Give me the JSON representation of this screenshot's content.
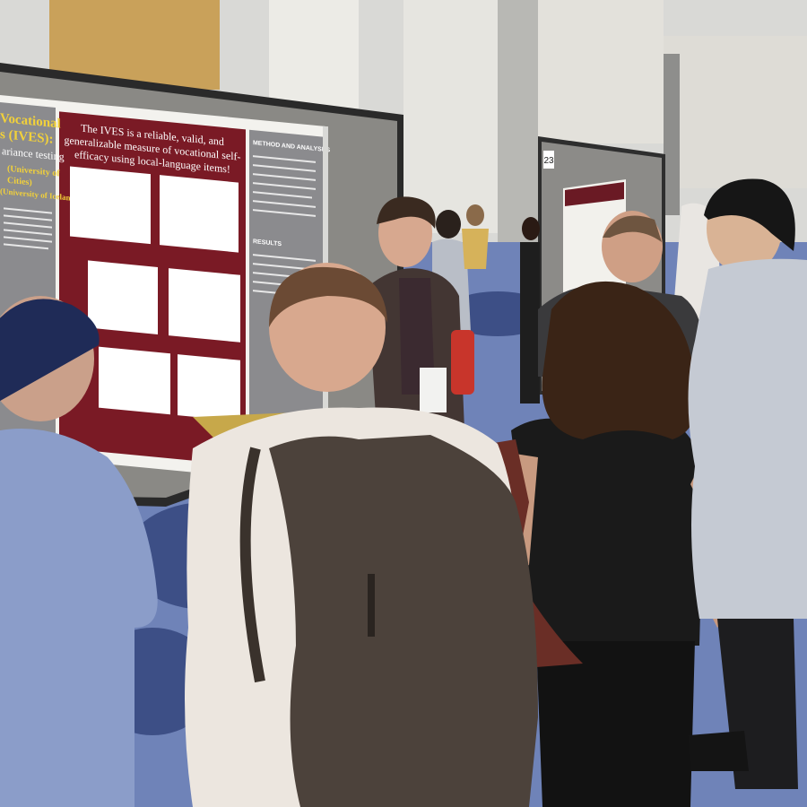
{
  "poster": {
    "left_title": "Vocational",
    "left_subtitle": "s (IVES):",
    "left_line": "ariance testing",
    "affiliation_1": "(University of",
    "affiliation_2": "Cities)",
    "affiliation_3": "(University of Iceland)",
    "headline": [
      "The IVES is a reliable, valid, and",
      "generalizable measure of vocational self-",
      "efficacy using local-language items!"
    ],
    "section_1": "METHOD AND ANALYSES",
    "section_2": "RESULTS"
  },
  "board_number": "23"
}
